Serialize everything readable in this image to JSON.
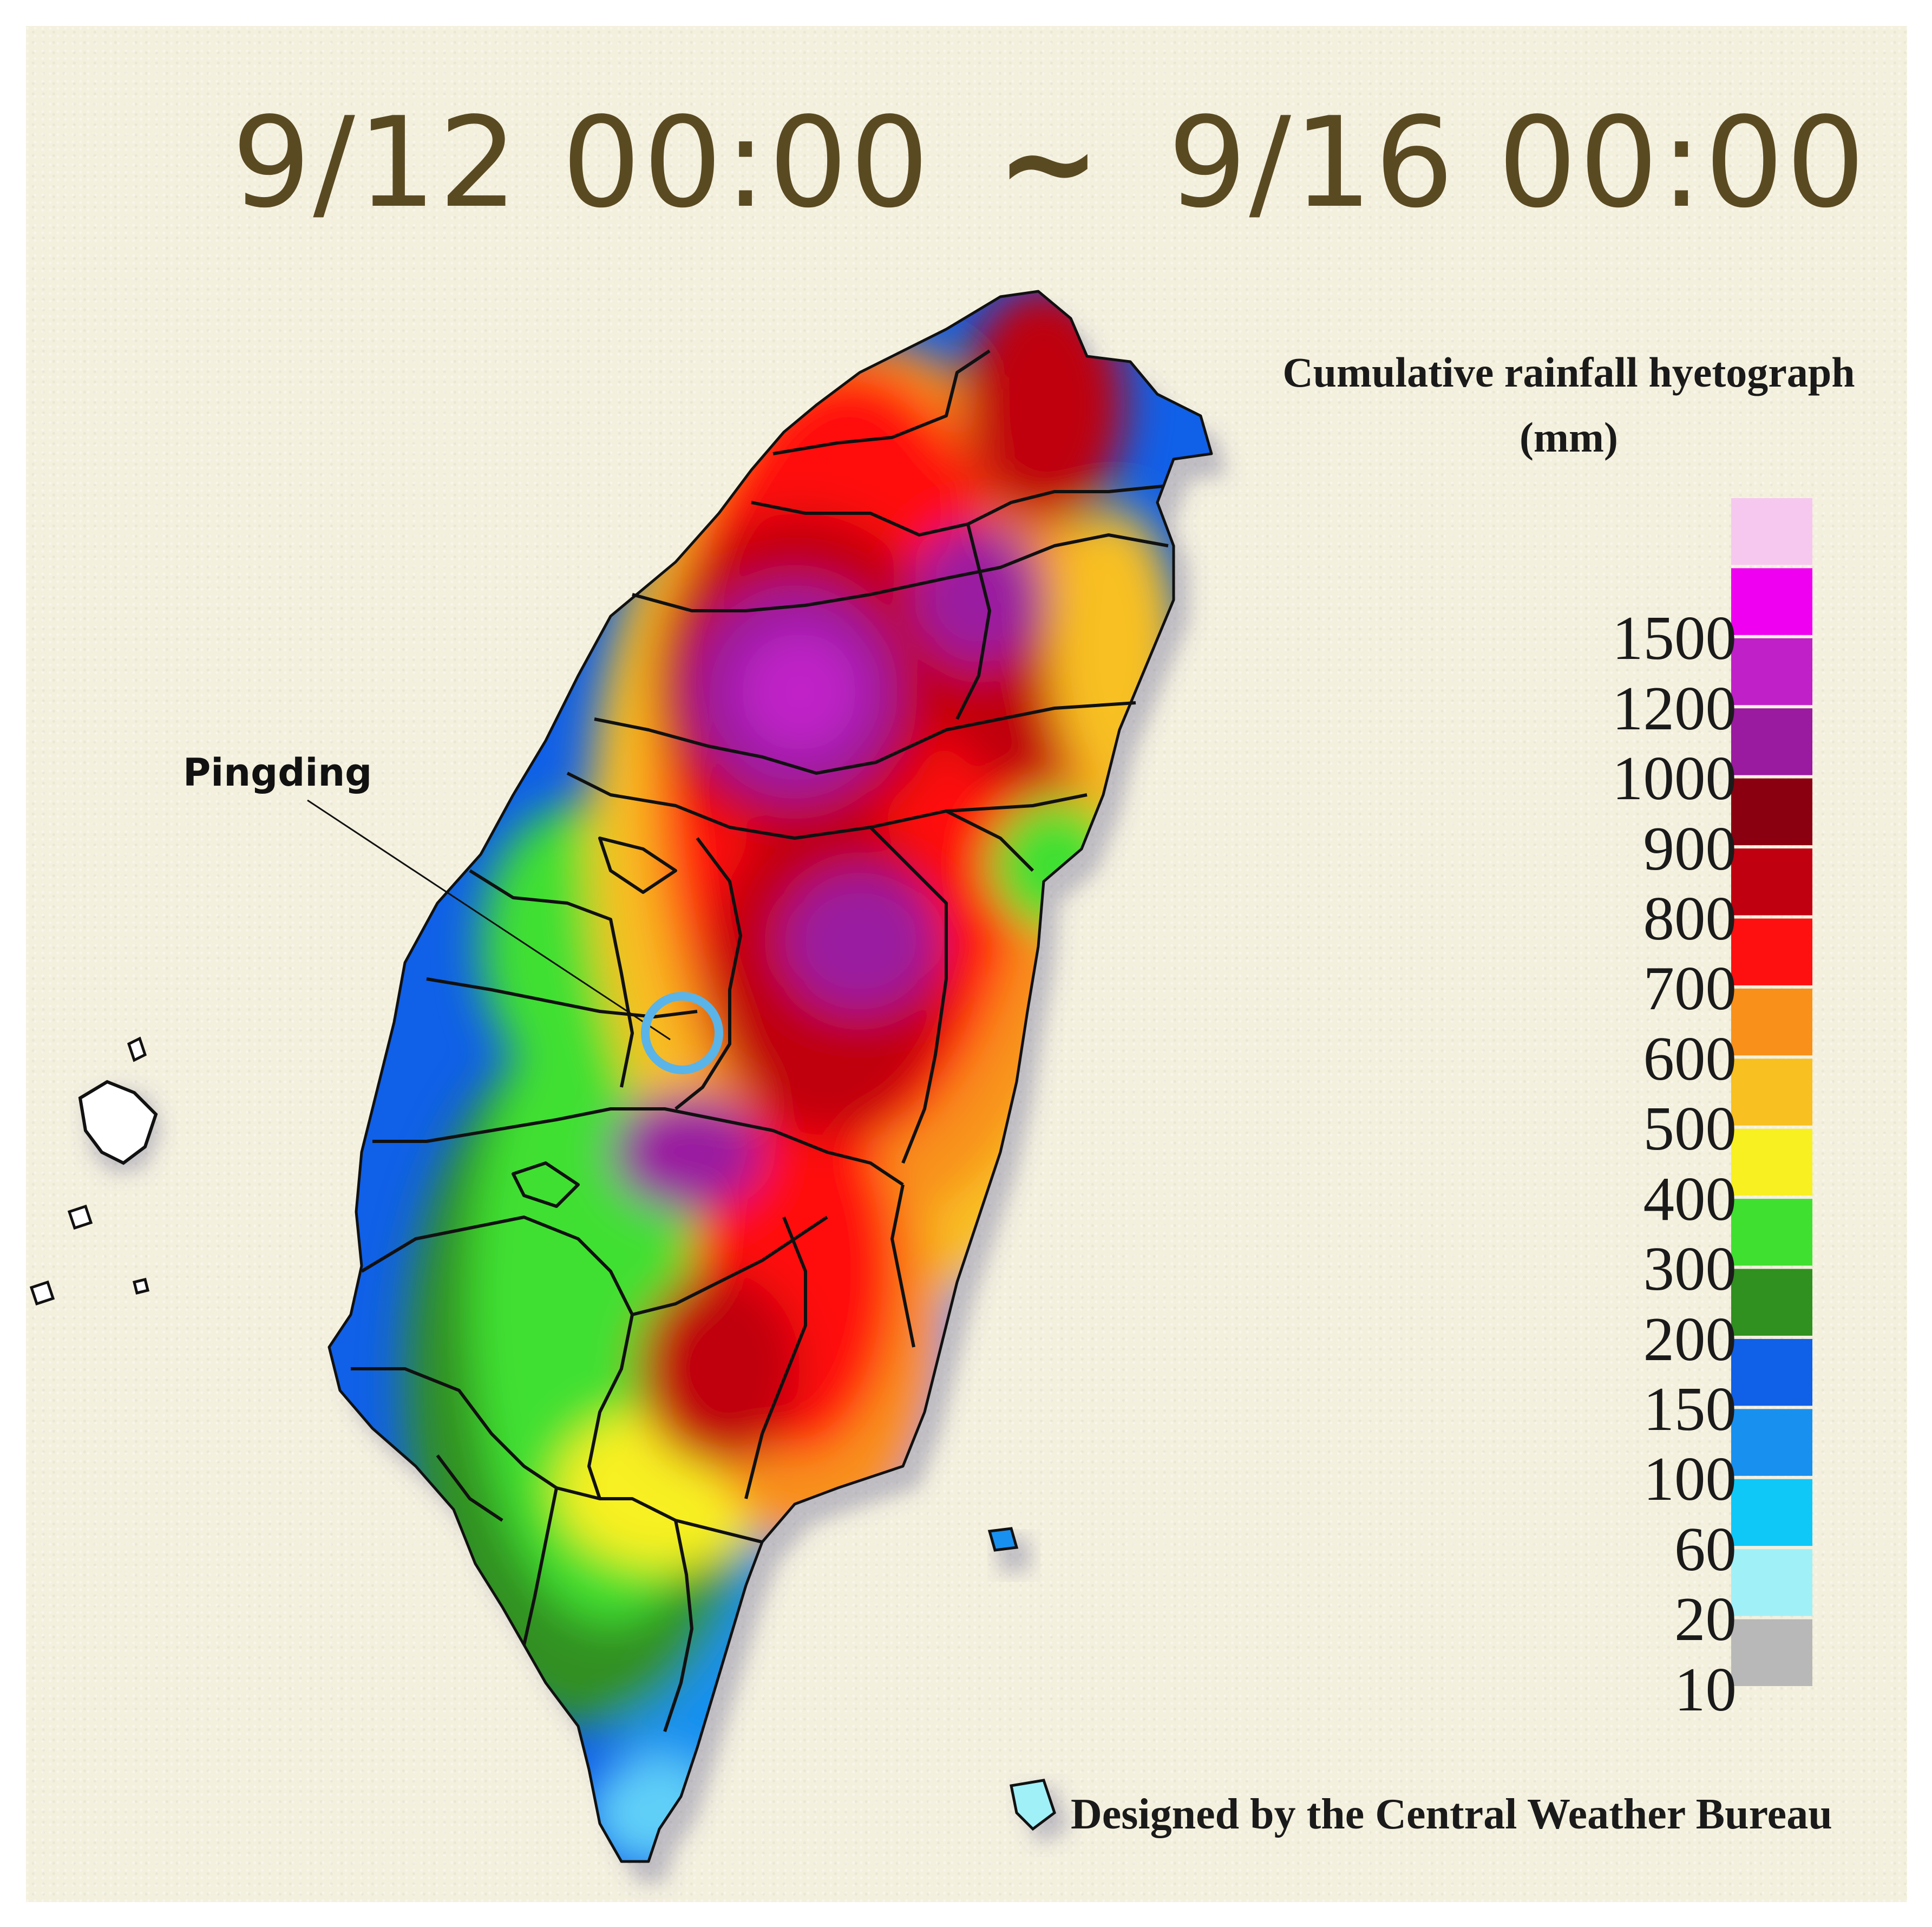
{
  "header": {
    "date_start": "9/12 00:00",
    "tilde": "~",
    "date_end": "9/16 00:00"
  },
  "legend": {
    "title_line1": "Cumulative rainfall hyetograph",
    "title_line2": "(mm)",
    "bins": [
      {
        "label": "",
        "color": "#f6c8f0"
      },
      {
        "label": "1500",
        "color": "#f000f0"
      },
      {
        "label": "1200",
        "color": "#c020c8"
      },
      {
        "label": "1000",
        "color": "#9a1aa0"
      },
      {
        "label": "900",
        "color": "#8a0010"
      },
      {
        "label": "800",
        "color": "#c00010"
      },
      {
        "label": "700",
        "color": "#ff1010"
      },
      {
        "label": "600",
        "color": "#f8901a"
      },
      {
        "label": "500",
        "color": "#f8c020"
      },
      {
        "label": "400",
        "color": "#f8f020"
      },
      {
        "label": "300",
        "color": "#40e030"
      },
      {
        "label": "200",
        "color": "#309020"
      },
      {
        "label": "150",
        "color": "#1060e8"
      },
      {
        "label": "100",
        "color": "#1890f0"
      },
      {
        "label": "60",
        "color": "#10c8f8"
      },
      {
        "label": "20",
        "color": "#a0f0f8"
      },
      {
        "label": "10",
        "color": "#b8b8b8"
      }
    ]
  },
  "annotation": {
    "site_name": "Pingding",
    "marker_color": "#5ab4e8"
  },
  "credit": "Designed by the Central Weather Bureau"
}
